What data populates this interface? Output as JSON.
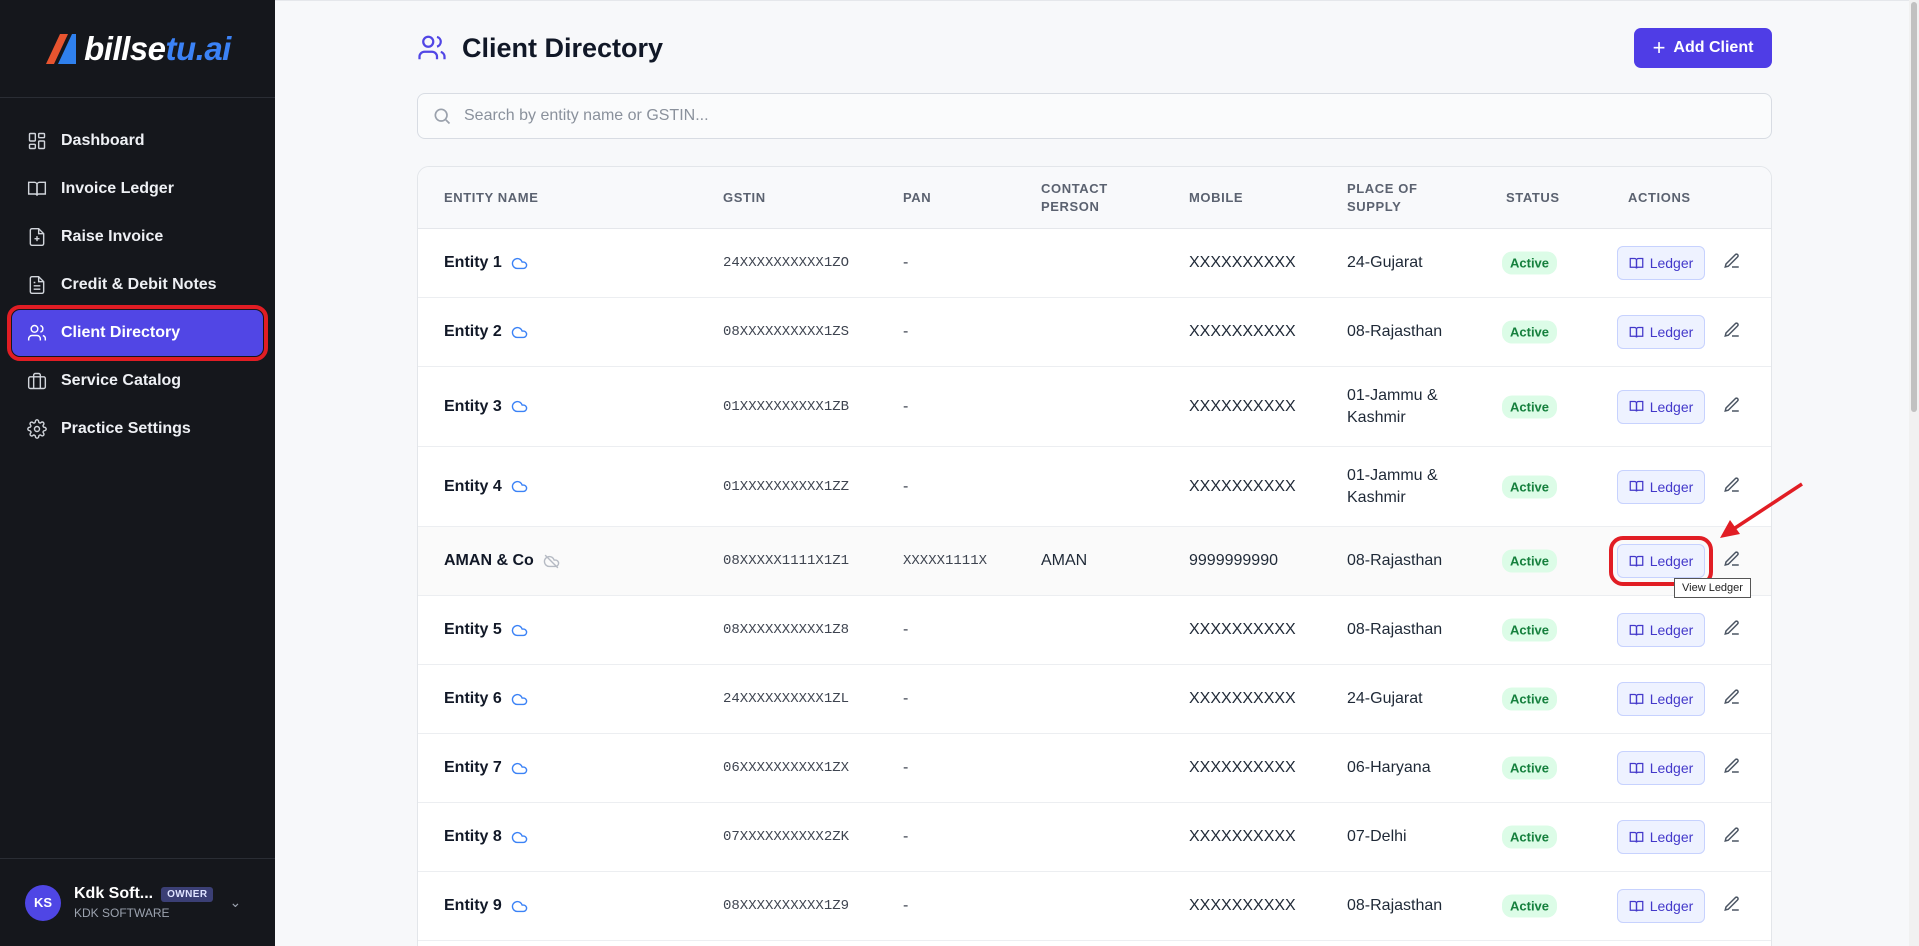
{
  "brand": {
    "name_part1": "billse",
    "name_part2": "tu",
    "name_part3": ".ai"
  },
  "sidebar": {
    "items": [
      {
        "label": "Dashboard",
        "icon": "dashboard-icon"
      },
      {
        "label": "Invoice Ledger",
        "icon": "book-icon"
      },
      {
        "label": "Raise Invoice",
        "icon": "file-plus-icon"
      },
      {
        "label": "Credit & Debit Notes",
        "icon": "file-text-icon"
      },
      {
        "label": "Client Directory",
        "icon": "users-icon",
        "active": true
      },
      {
        "label": "Service Catalog",
        "icon": "briefcase-icon"
      },
      {
        "label": "Practice Settings",
        "icon": "gear-icon"
      }
    ]
  },
  "user": {
    "initials": "KS",
    "name": "Kdk Soft...",
    "role": "OWNER",
    "company": "KDK SOFTWARE"
  },
  "header": {
    "title": "Client Directory",
    "add_label": "Add Client"
  },
  "search": {
    "placeholder": "Search by entity name or GSTIN..."
  },
  "table": {
    "columns": {
      "entity": "ENTITY NAME",
      "gstin": "GSTIN",
      "pan": "PAN",
      "contact_1": "CONTACT",
      "contact_2": "PERSON",
      "mobile": "MOBILE",
      "supply_1": "PLACE OF",
      "supply_2": "SUPPLY",
      "status": "STATUS",
      "actions": "ACTIONS"
    },
    "ledger_label": "Ledger",
    "rows": [
      {
        "entity": "Entity 1",
        "gstin": "24XXXXXXXXXX1ZO",
        "pan": "-",
        "contact": "",
        "mobile": "XXXXXXXXXX",
        "supply_1": "24-Gujarat",
        "supply_2": "",
        "status": "Active"
      },
      {
        "entity": "Entity 2",
        "gstin": "08XXXXXXXXXX1ZS",
        "pan": "-",
        "contact": "",
        "mobile": "XXXXXXXXXX",
        "supply_1": "08-Rajasthan",
        "supply_2": "",
        "status": "Active"
      },
      {
        "entity": "Entity 3",
        "gstin": "01XXXXXXXXXX1ZB",
        "pan": "-",
        "contact": "",
        "mobile": "XXXXXXXXXX",
        "supply_1": "01-Jammu &",
        "supply_2": "Kashmir",
        "status": "Active"
      },
      {
        "entity": "Entity 4",
        "gstin": "01XXXXXXXXXX1ZZ",
        "pan": "-",
        "contact": "",
        "mobile": "XXXXXXXXXX",
        "supply_1": "01-Jammu &",
        "supply_2": "Kashmir",
        "status": "Active"
      },
      {
        "entity": "AMAN & Co",
        "gstin": "08XXXXX1111X1Z1",
        "pan": "XXXXX1111X",
        "contact": "AMAN",
        "mobile": "9999999990",
        "supply_1": "08-Rajasthan",
        "supply_2": "",
        "status": "Active"
      },
      {
        "entity": "Entity 5",
        "gstin": "08XXXXXXXXXX1Z8",
        "pan": "-",
        "contact": "",
        "mobile": "XXXXXXXXXX",
        "supply_1": "08-Rajasthan",
        "supply_2": "",
        "status": "Active"
      },
      {
        "entity": "Entity 6",
        "gstin": "24XXXXXXXXXX1ZL",
        "pan": "-",
        "contact": "",
        "mobile": "XXXXXXXXXX",
        "supply_1": "24-Gujarat",
        "supply_2": "",
        "status": "Active"
      },
      {
        "entity": "Entity 7",
        "gstin": "06XXXXXXXXXX1ZX",
        "pan": "-",
        "contact": "",
        "mobile": "XXXXXXXXXX",
        "supply_1": "06-Haryana",
        "supply_2": "",
        "status": "Active"
      },
      {
        "entity": "Entity 8",
        "gstin": "07XXXXXXXXXX2ZK",
        "pan": "-",
        "contact": "",
        "mobile": "XXXXXXXXXX",
        "supply_1": "07-Delhi",
        "supply_2": "",
        "status": "Active"
      },
      {
        "entity": "Entity 9",
        "gstin": "08XXXXXXXXXX1Z9",
        "pan": "-",
        "contact": "",
        "mobile": "XXXXXXXXXX",
        "supply_1": "08-Rajasthan",
        "supply_2": "",
        "status": "Active"
      }
    ]
  },
  "tooltip": {
    "text": "View Ledger"
  },
  "colors": {
    "accent": "#4f3de6",
    "sidebar_bg": "#15171c",
    "status_active": "#15803d",
    "annotation_red": "#e11d24"
  }
}
